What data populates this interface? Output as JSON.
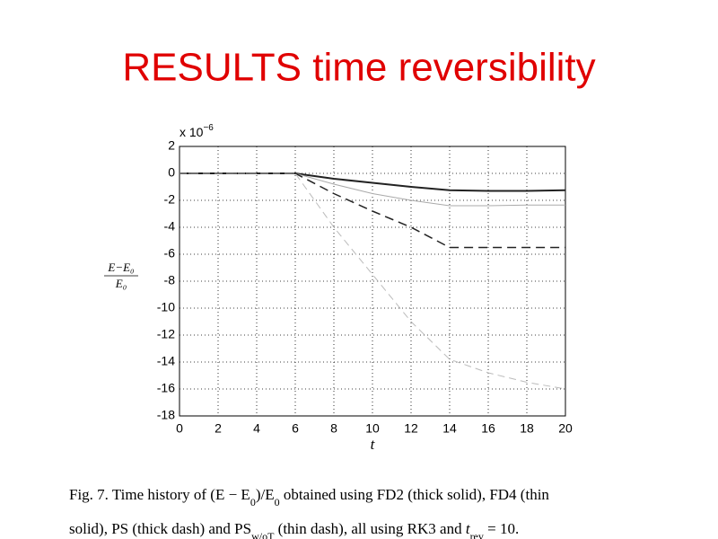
{
  "chart_data": {
    "type": "line",
    "title": "RESULTS time reversibility",
    "title_color": "#e00000",
    "y_multiplier": {
      "base": "x 10",
      "exponent": "−6"
    },
    "ylabel_numerator": "E−E₀",
    "ylabel_denominator": "E₀",
    "xlabel": "t",
    "x": [
      0,
      2,
      4,
      6,
      8,
      10,
      12,
      14,
      16,
      18,
      20
    ],
    "series": [
      {
        "color": "#222222",
        "width": 2,
        "dash": "none",
        "values": [
          0,
          0,
          0,
          0,
          -0.4,
          -0.7,
          -1.0,
          -1.25,
          -1.3,
          -1.3,
          -1.25
        ]
      },
      {
        "color": "#aaaaaa",
        "width": 1,
        "dash": "none",
        "values": [
          0,
          0,
          0,
          0,
          -0.8,
          -1.5,
          -2.0,
          -2.4,
          -2.4,
          -2.35,
          -2.35
        ]
      },
      {
        "color": "#222222",
        "width": 1.5,
        "dash": "10,6",
        "values": [
          0,
          0,
          0,
          0,
          -1.5,
          -2.8,
          -4.0,
          -5.5,
          -5.5,
          -5.5,
          -5.5
        ]
      },
      {
        "color": "#bbbbbb",
        "width": 1,
        "dash": "8,5",
        "values": [
          0,
          0,
          0,
          0,
          -4.0,
          -7.5,
          -11.0,
          -13.8,
          -14.8,
          -15.5,
          -16.0
        ]
      }
    ],
    "xlim": [
      0,
      20
    ],
    "xticks": [
      0,
      2,
      4,
      6,
      8,
      10,
      12,
      14,
      16,
      18,
      20
    ],
    "ylim": [
      -18,
      2
    ],
    "yticks": [
      2,
      0,
      -2,
      -4,
      -6,
      -8,
      -10,
      -12,
      -14,
      -16,
      -18
    ],
    "grid": true,
    "caption": [
      [
        {
          "text": "Fig. 7. Time history of (E − E"
        },
        {
          "text": "0",
          "style": "sub"
        },
        {
          "text": ")/E"
        },
        {
          "text": "0",
          "style": "sub"
        },
        {
          "text": " obtained using FD2 (thick solid), FD4 (thin"
        }
      ],
      [
        {
          "text": "solid), PS (thick dash) and PS"
        },
        {
          "text": "w/oT",
          "style": "sub"
        },
        {
          "text": " (thin dash), all using RK3 and "
        },
        {
          "text": "t",
          "style": "italic"
        },
        {
          "text": "rev",
          "style": "sub"
        },
        {
          "text": " = 10."
        }
      ]
    ]
  }
}
